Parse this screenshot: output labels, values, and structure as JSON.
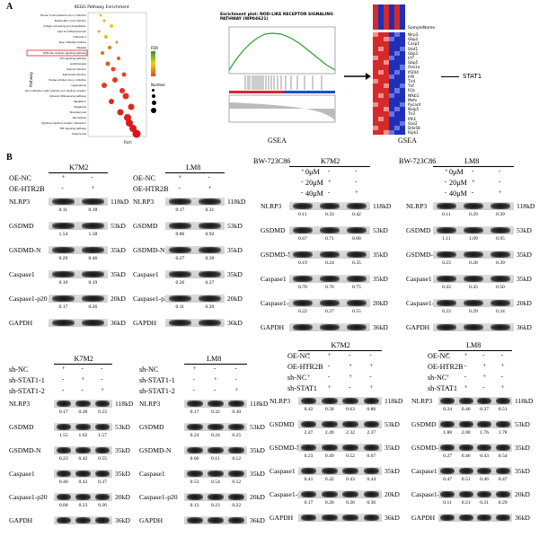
{
  "panel_a": {
    "label": "A",
    "kegg": {
      "title": "KEGG Pathway Enrichment",
      "ylabel": "Pathway",
      "xlabel": "Rich",
      "pathways": [
        "Human T-cell leukemia virus 1 infection",
        "Epstein-Barr virus infection",
        "Antigen processing and presentation",
        "Lipid and atherosclerosis",
        "Influenza A",
        "Type I diabetes mellitus",
        "Measles",
        "NOD-like receptor signaling pathway",
        "p53 signaling pathway",
        "Leishmaniasis",
        "Yersinia infection",
        "Salmonella infection",
        "Herpes simplex virus 1 infection",
        "Legionellosis",
        "Viral protein interaction with cytokine and cytokine receptor",
        "Cytosolic DNA-sensing pathway",
        "Hepatitis C",
        "Shigellosis",
        "Toxoplasmosis",
        "Necroptosis",
        "Cytokine-cytokine receptor interaction",
        "TNF signaling pathway",
        "Tuberculosis"
      ],
      "highlight_index": 7,
      "legend_fdr": "FDR",
      "legend_number": "Number"
    },
    "gsea_plot": {
      "title": "Enrichment plot: NOD-LIKE RECEPTOR SIGNALING PATHWAY (WP04621)",
      "caption": "GSEA"
    },
    "heatmap": {
      "header": "SampleName",
      "genes": [
        "Nlrp3",
        "Gbp2",
        "Casp1",
        "Stat1",
        "Gbp3",
        "Irf7",
        "Gbp5",
        "Oas1a",
        "Ifi204",
        "Irf9",
        "Tlr4",
        "Tnf",
        "Il1b",
        "Nfkb1",
        "Mefv",
        "Pycard",
        "Naip5",
        "Tlr2",
        "Ifih1",
        "Oas2",
        "Ddx58",
        "Ripk1"
      ],
      "arrow_target": "STAT1",
      "caption": "GSEA"
    }
  },
  "panel_b": {
    "label": "B",
    "row1": [
      {
        "title": "K7M2",
        "conditions": [
          {
            "label": "OE-NC",
            "signs": [
              "+",
              "-"
            ]
          },
          {
            "label": "OE-HTR2B",
            "signs": [
              "-",
              "+"
            ]
          }
        ],
        "blots": [
          {
            "name": "NLRP3",
            "kd": "118kD",
            "values": [
              "0.11",
              "0.18"
            ]
          },
          {
            "name": "GSDMD",
            "kd": "53kD",
            "values": [
              "1.54",
              "1.58"
            ]
          },
          {
            "name": "GSDMD-N",
            "kd": "35kD",
            "values": [
              "0.29",
              "0.46"
            ]
          },
          {
            "name": "Caspase1",
            "kd": "35kD",
            "values": [
              "0.19",
              "0.19"
            ]
          },
          {
            "name": "Caspase1-p20",
            "kd": "20kD",
            "values": [
              "0.17",
              "0.26"
            ]
          },
          {
            "name": "GAPDH",
            "kd": "36kD",
            "values": []
          }
        ]
      },
      {
        "title": "LM8",
        "conditions": [
          {
            "label": "OE-NC",
            "signs": [
              "+",
              "-"
            ]
          },
          {
            "label": "OE-HTR2B",
            "signs": [
              "-",
              "+"
            ]
          }
        ],
        "blots": [
          {
            "name": "NLRP3",
            "kd": "118kD",
            "values": [
              "0.17",
              "0.31"
            ]
          },
          {
            "name": "GSDMD",
            "kd": "53kD",
            "values": [
              "0.86",
              "0.92"
            ]
          },
          {
            "name": "GSDMD-N",
            "kd": "35kD",
            "values": [
              "0.27",
              "0.39"
            ]
          },
          {
            "name": "Caspase1",
            "kd": "35kD",
            "values": [
              "0.26",
              "0.27"
            ]
          },
          {
            "name": "Caspase1-p20",
            "kd": "20kD",
            "values": [
              "0.11",
              "0.20"
            ]
          },
          {
            "name": "GAPDH",
            "kd": "36kD",
            "values": []
          }
        ]
      },
      {
        "title": "K7M2",
        "treatment": "BW-723C86",
        "conditions": [
          {
            "label": "0μM",
            "signs": [
              "+",
              "-",
              "-"
            ]
          },
          {
            "label": "20μM",
            "signs": [
              "-",
              "+",
              "-"
            ]
          },
          {
            "label": "40μM",
            "signs": [
              "-",
              "-",
              "+"
            ]
          }
        ],
        "blots": [
          {
            "name": "NLRP3",
            "kd": "118kD",
            "values": [
              "0.11",
              "0.33",
              "0.42"
            ]
          },
          {
            "name": "GSDMD",
            "kd": "53kD",
            "values": [
              "0.67",
              "0.71",
              "0.68"
            ]
          },
          {
            "name": "GSDMD-N",
            "kd": "35kD",
            "values": [
              "0.19",
              "0.24",
              "0.35"
            ]
          },
          {
            "name": "Caspase1",
            "kd": "35kD",
            "values": [
              "0.70",
              "0.76",
              "0.75"
            ]
          },
          {
            "name": "Caspase1-p20",
            "kd": "20kD",
            "values": [
              "0.22",
              "0.27",
              "0.55"
            ]
          },
          {
            "name": "GAPDH",
            "kd": "36kD",
            "values": []
          }
        ]
      },
      {
        "title": "LM8",
        "treatment": "BW-723C86",
        "conditions": [
          {
            "label": "0μM",
            "signs": [
              "+",
              "-",
              "-"
            ]
          },
          {
            "label": "20μM",
            "signs": [
              "-",
              "+",
              "-"
            ]
          },
          {
            "label": "40μM",
            "signs": [
              "-",
              "-",
              "+"
            ]
          }
        ],
        "blots": [
          {
            "name": "NLRP3",
            "kd": "118kD",
            "values": [
              "0.11",
              "0.29",
              "0.39"
            ]
          },
          {
            "name": "GSDMD",
            "kd": "53kD",
            "values": [
              "1.11",
              "1.09",
              "0.95"
            ]
          },
          {
            "name": "GSDMD-N",
            "kd": "35kD",
            "values": [
              "0.23",
              "0.28",
              "0.39"
            ]
          },
          {
            "name": "Caspase1",
            "kd": "35kD",
            "values": [
              "0.43",
              "0.43",
              "0.50"
            ]
          },
          {
            "name": "Caspase1-p20",
            "kd": "20kD",
            "values": [
              "0.23",
              "0.29",
              "0.34"
            ]
          },
          {
            "name": "GAPDH",
            "kd": "36kD",
            "values": []
          }
        ]
      }
    ],
    "row2": [
      {
        "title": "K7M2",
        "conditions": [
          {
            "label": "sh-NC",
            "signs": [
              "+",
              "-",
              "-"
            ]
          },
          {
            "label": "sh-STAT1-1",
            "signs": [
              "-",
              "+",
              "-"
            ]
          },
          {
            "label": "sh-STAT1-2",
            "signs": [
              "-",
              "-",
              "+"
            ]
          }
        ],
        "blots": [
          {
            "name": "NLRP3",
            "kd": "118kD",
            "values": [
              "0.17",
              "0.28",
              "0.23"
            ]
          },
          {
            "name": "GSDMD",
            "kd": "53kD",
            "values": [
              "1.55",
              "1.62",
              "1.57"
            ]
          },
          {
            "name": "GSDMD-N",
            "kd": "35kD",
            "values": [
              "0.23",
              "0.42",
              "0.55"
            ]
          },
          {
            "name": "Caspase1",
            "kd": "35kD",
            "values": [
              "0.40",
              "0.43",
              "0.37"
            ]
          },
          {
            "name": "Caspase1-p20",
            "kd": "20kD",
            "values": [
              "0.08",
              "0.23",
              "0.26"
            ]
          },
          {
            "name": "GAPDH",
            "kd": "36kD",
            "values": []
          }
        ]
      },
      {
        "title": "LM8",
        "conditions": [
          {
            "label": "sh-NC",
            "signs": [
              "+",
              "-",
              "-"
            ]
          },
          {
            "label": "sh-STAT1-1",
            "signs": [
              "-",
              "+",
              "-"
            ]
          },
          {
            "label": "sh-STAT1-2",
            "signs": [
              "-",
              "-",
              "+"
            ]
          }
        ],
        "blots": [
          {
            "name": "NLRP3",
            "kd": "118kD",
            "values": [
              "0.17",
              "0.32",
              "0.30"
            ]
          },
          {
            "name": "GSDMD",
            "kd": "53kD",
            "values": [
              "0.24",
              "0.24",
              "0.25"
            ]
          },
          {
            "name": "GSDMD-N",
            "kd": "35kD",
            "values": [
              "0.06",
              "0.11",
              "0.12"
            ]
          },
          {
            "name": "Caspase1",
            "kd": "35kD",
            "values": [
              "0.53",
              "0.54",
              "0.52"
            ]
          },
          {
            "name": "Caspase1-p20",
            "kd": "20kD",
            "values": [
              "0.13",
              "0.23",
              "0.22"
            ]
          },
          {
            "name": "GAPDH",
            "kd": "36kD",
            "values": []
          }
        ]
      },
      {
        "title": "K7M2",
        "conditions": [
          {
            "label": "OE-NC",
            "signs": [
              "+",
              "+",
              "-",
              "-"
            ]
          },
          {
            "label": "OE-HTR2B",
            "signs": [
              "-",
              "-",
              "+",
              "+"
            ]
          },
          {
            "label": "sh-NC",
            "signs": [
              "+",
              "-",
              "+",
              "-"
            ]
          },
          {
            "label": "sh-STAT1",
            "signs": [
              "-",
              "+",
              "-",
              "+"
            ]
          }
        ],
        "blots": [
          {
            "name": "NLRP3",
            "kd": "118kD",
            "values": [
              "0.42",
              "0.58",
              "0.63",
              "0.80"
            ]
          },
          {
            "name": "GSDMD",
            "kd": "53kD",
            "values": [
              "2.47",
              "2.49",
              "2.32",
              "2.37"
            ]
          },
          {
            "name": "GSDMD-N",
            "kd": "35kD",
            "values": [
              "0.23",
              "0.49",
              "0.52",
              "0.67"
            ]
          },
          {
            "name": "Caspase1",
            "kd": "35kD",
            "values": [
              "0.41",
              "0.42",
              "0.43",
              "0.44"
            ]
          },
          {
            "name": "Caspase1-p20",
            "kd": "20kD",
            "values": [
              "0.17",
              "0.26",
              "0.26",
              "0.36"
            ]
          },
          {
            "name": "GAPDH",
            "kd": "36kD",
            "values": []
          }
        ]
      },
      {
        "title": "LM8",
        "conditions": [
          {
            "label": "OE-NC",
            "signs": [
              "+",
              "+",
              "-",
              "-"
            ]
          },
          {
            "label": "OE-HTR2B",
            "signs": [
              "-",
              "-",
              "+",
              "+"
            ]
          },
          {
            "label": "sh-NC",
            "signs": [
              "+",
              "-",
              "+",
              "-"
            ]
          },
          {
            "label": "sh-STAT1",
            "signs": [
              "-",
              "+",
              "-",
              "+"
            ]
          }
        ],
        "blots": [
          {
            "name": "NLRP3",
            "kd": "118kD",
            "values": [
              "0.24",
              "0.40",
              "0.37",
              "0.51"
            ]
          },
          {
            "name": "GSDMD",
            "kd": "53kD",
            "values": [
              "1.88",
              "2.00",
              "1.76",
              "1.78"
            ]
          },
          {
            "name": "GSDMD-N",
            "kd": "35kD",
            "values": [
              "0.27",
              "0.46",
              "0.43",
              "0.54"
            ]
          },
          {
            "name": "Caspase1",
            "kd": "35kD",
            "values": [
              "0.47",
              "0.51",
              "0.46",
              "0.47"
            ]
          },
          {
            "name": "Caspase1-p20",
            "kd": "20kD",
            "values": [
              "0.11",
              "0.21",
              "0.21",
              "0.29"
            ]
          },
          {
            "name": "GAPDH",
            "kd": "36kD",
            "values": []
          }
        ]
      }
    ]
  }
}
